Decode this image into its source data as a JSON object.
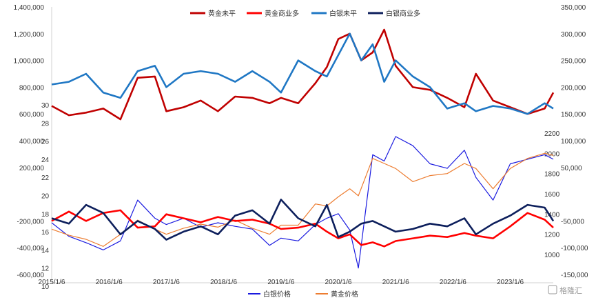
{
  "chart_data": [
    {
      "type": "line",
      "panel": "top",
      "title": "",
      "legend": "top-center",
      "left_axis": {
        "min": -600000,
        "max": 1400000,
        "ticks": [
          1400000,
          1200000,
          1000000,
          800000,
          600000,
          400000,
          200000,
          0,
          -200000,
          -400000,
          -600000
        ],
        "tick_labels": [
          "1,400,000",
          "1,200,000",
          "1,000,000",
          "800,000",
          "600,000",
          "400,000",
          "200,000",
          "",
          "-200,000",
          "-400,000",
          "-600,000"
        ]
      },
      "right_axis": {
        "min": -150000,
        "max": 350000,
        "ticks": [
          350000,
          300000,
          250000,
          200000,
          150000,
          100000,
          50000,
          0,
          -50000,
          -100000,
          -150000
        ],
        "tick_labels": [
          "350,000",
          "300,000",
          "250,000",
          "200,000",
          "150,000",
          "100,000",
          "50,000",
          "",
          "-50,000",
          "-100,000",
          "-150,000"
        ]
      },
      "x_range": [
        2015.0,
        2023.75
      ],
      "x_tick_labels": [
        "2015/1/6",
        "2016/1/6",
        "2017/1/6",
        "2018/1/6",
        "2019/1/6",
        "2020/1/6",
        "2021/1/6",
        "2022/1/6",
        "2023/1/6"
      ],
      "series": [
        {
          "name": "黄金未平",
          "axis": "left",
          "color": "#c00000",
          "width": 2.6,
          "x": [
            2015.0,
            2015.3,
            2015.6,
            2015.9,
            2016.2,
            2016.5,
            2016.8,
            2017.0,
            2017.3,
            2017.6,
            2017.9,
            2018.2,
            2018.5,
            2018.8,
            2019.0,
            2019.3,
            2019.6,
            2019.8,
            2020.0,
            2020.2,
            2020.4,
            2020.6,
            2020.8,
            2021.0,
            2021.3,
            2021.6,
            2021.9,
            2022.2,
            2022.4,
            2022.7,
            2023.0,
            2023.3,
            2023.6,
            2023.75
          ],
          "y": [
            660000,
            590000,
            610000,
            640000,
            560000,
            870000,
            880000,
            620000,
            650000,
            700000,
            620000,
            730000,
            720000,
            680000,
            720000,
            680000,
            830000,
            950000,
            1160000,
            1200000,
            1000000,
            1060000,
            1230000,
            960000,
            800000,
            780000,
            720000,
            650000,
            900000,
            700000,
            650000,
            600000,
            640000,
            760000
          ]
        },
        {
          "name": "黄金商业多",
          "axis": "left",
          "color": "#ff0000",
          "width": 2.6,
          "x": [
            2015.0,
            2015.3,
            2015.6,
            2015.9,
            2016.2,
            2016.5,
            2016.8,
            2017.0,
            2017.3,
            2017.6,
            2017.9,
            2018.2,
            2018.5,
            2018.8,
            2019.0,
            2019.3,
            2019.6,
            2019.8,
            2020.0,
            2020.2,
            2020.4,
            2020.6,
            2020.8,
            2021.0,
            2021.3,
            2021.6,
            2021.9,
            2022.2,
            2022.4,
            2022.7,
            2023.0,
            2023.3,
            2023.6,
            2023.75
          ],
          "y": [
            -200000,
            -130000,
            -200000,
            -140000,
            -120000,
            -250000,
            -240000,
            -150000,
            -180000,
            -210000,
            -170000,
            -200000,
            -190000,
            -220000,
            -260000,
            -250000,
            -220000,
            -280000,
            -330000,
            -300000,
            -380000,
            -360000,
            -390000,
            -350000,
            -330000,
            -310000,
            -320000,
            -290000,
            -310000,
            -330000,
            -240000,
            -140000,
            -190000,
            -250000
          ]
        },
        {
          "name": "白银未平",
          "axis": "right",
          "color": "#1f77c4",
          "width": 2.6,
          "x": [
            2015.0,
            2015.3,
            2015.6,
            2015.9,
            2016.2,
            2016.5,
            2016.8,
            2017.0,
            2017.3,
            2017.6,
            2017.9,
            2018.2,
            2018.5,
            2018.8,
            2019.0,
            2019.3,
            2019.6,
            2019.8,
            2020.0,
            2020.2,
            2020.4,
            2020.6,
            2020.8,
            2021.0,
            2021.3,
            2021.6,
            2021.9,
            2022.2,
            2022.4,
            2022.7,
            2023.0,
            2023.3,
            2023.6,
            2023.75
          ],
          "y": [
            205000,
            210000,
            225000,
            190000,
            180000,
            230000,
            240000,
            200000,
            225000,
            230000,
            225000,
            210000,
            230000,
            210000,
            190000,
            250000,
            230000,
            220000,
            260000,
            300000,
            250000,
            280000,
            210000,
            250000,
            220000,
            200000,
            160000,
            170000,
            155000,
            165000,
            160000,
            150000,
            170000,
            160000
          ]
        },
        {
          "name": "白银商业多",
          "axis": "right",
          "color": "#0d1f5c",
          "width": 2.6,
          "x": [
            2015.0,
            2015.3,
            2015.6,
            2015.9,
            2016.2,
            2016.5,
            2016.8,
            2017.0,
            2017.3,
            2017.6,
            2017.9,
            2018.2,
            2018.5,
            2018.8,
            2019.0,
            2019.3,
            2019.6,
            2019.8,
            2020.0,
            2020.2,
            2020.4,
            2020.6,
            2020.8,
            2021.0,
            2021.3,
            2021.6,
            2021.9,
            2022.2,
            2022.4,
            2022.7,
            2023.0,
            2023.3,
            2023.6,
            2023.75
          ],
          "y": [
            -45000,
            -55000,
            -20000,
            -35000,
            -75000,
            -50000,
            -65000,
            -85000,
            -70000,
            -60000,
            -75000,
            -40000,
            -30000,
            -55000,
            -10000,
            -45000,
            -60000,
            -20000,
            -80000,
            -70000,
            -55000,
            -50000,
            -60000,
            -70000,
            -65000,
            -55000,
            -60000,
            -45000,
            -75000,
            -55000,
            -40000,
            -20000,
            -25000,
            -50000
          ]
        }
      ]
    },
    {
      "type": "line",
      "panel": "bottom",
      "title": "",
      "legend": "bottom-center",
      "left_axis": {
        "min": 10,
        "max": 30,
        "ticks": [
          30,
          28,
          26,
          24,
          22,
          20,
          18,
          16,
          14,
          12,
          10
        ],
        "tick_labels": [
          "30",
          "28",
          "26",
          "24",
          "22",
          "20",
          "18",
          "16",
          "14",
          "12",
          "10"
        ]
      },
      "right_axis": {
        "min": 1000,
        "max": 2200,
        "ticks": [
          2200,
          2000,
          1800,
          1600,
          1400,
          1200,
          1000
        ],
        "tick_labels": [
          "2200",
          "2000",
          "1800",
          "1600",
          "1400",
          "1200",
          "1000"
        ]
      },
      "x_range": [
        2015.0,
        2023.75
      ],
      "series": [
        {
          "name": "白银价格",
          "axis": "left",
          "color": "#1a1adf",
          "width": 1.2,
          "x": [
            2015.0,
            2015.3,
            2015.6,
            2015.9,
            2016.2,
            2016.5,
            2016.8,
            2017.0,
            2017.3,
            2017.6,
            2017.9,
            2018.2,
            2018.5,
            2018.8,
            2019.0,
            2019.3,
            2019.6,
            2019.8,
            2020.0,
            2020.2,
            2020.35,
            2020.6,
            2020.8,
            2021.0,
            2021.3,
            2021.6,
            2021.9,
            2022.2,
            2022.4,
            2022.7,
            2023.0,
            2023.3,
            2023.6,
            2023.75
          ],
          "y": [
            17.0,
            15.5,
            14.8,
            14.0,
            15.0,
            19.5,
            17.5,
            16.8,
            17.5,
            16.5,
            17.0,
            16.6,
            16.3,
            14.5,
            15.3,
            15.0,
            16.8,
            17.5,
            18.0,
            16.2,
            12.0,
            24.5,
            23.8,
            26.5,
            25.5,
            23.5,
            23.0,
            25.0,
            22.0,
            19.5,
            23.5,
            24.0,
            24.5,
            24.0
          ]
        },
        {
          "name": "黄金价格",
          "axis": "right",
          "color": "#ed7d31",
          "width": 1.2,
          "x": [
            2015.0,
            2015.3,
            2015.6,
            2015.9,
            2016.2,
            2016.5,
            2016.8,
            2017.0,
            2017.3,
            2017.6,
            2017.9,
            2018.2,
            2018.5,
            2018.8,
            2019.0,
            2019.3,
            2019.6,
            2019.8,
            2020.0,
            2020.2,
            2020.35,
            2020.6,
            2020.8,
            2021.0,
            2021.3,
            2021.6,
            2021.9,
            2022.2,
            2022.4,
            2022.7,
            2023.0,
            2023.3,
            2023.6,
            2023.75
          ],
          "y": [
            1250,
            1190,
            1150,
            1080,
            1200,
            1340,
            1250,
            1200,
            1260,
            1300,
            1270,
            1340,
            1260,
            1200,
            1290,
            1290,
            1500,
            1480,
            1570,
            1650,
            1580,
            1950,
            1900,
            1850,
            1720,
            1780,
            1800,
            1900,
            1850,
            1650,
            1850,
            1950,
            2000,
            1980
          ]
        }
      ]
    }
  ],
  "watermark": "格隆汇"
}
